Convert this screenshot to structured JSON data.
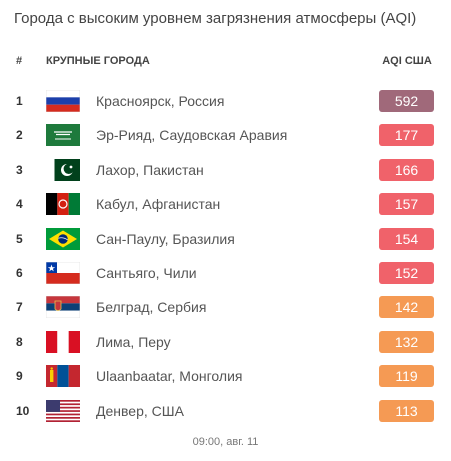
{
  "title": "Города с высоким уровнем загрязнения атмосферы (AQI)",
  "headers": {
    "num": "#",
    "city": "КРУПНЫЕ ГОРОДА",
    "aqi": "AQI США"
  },
  "cities": [
    {
      "rank": "1",
      "name": "Красноярск, Россия",
      "aqi": "592",
      "color": "#a0697a",
      "flag": "russia-flag-icon"
    },
    {
      "rank": "2",
      "name": "Эр-Рияд, Саудовская Аравия",
      "aqi": "177",
      "color": "#f0626a",
      "flag": "saudi-arabia-flag-icon"
    },
    {
      "rank": "3",
      "name": "Лахор, Пакистан",
      "aqi": "166",
      "color": "#f0626a",
      "flag": "pakistan-flag-icon"
    },
    {
      "rank": "4",
      "name": "Кабул, Афганистан",
      "aqi": "157",
      "color": "#f0626a",
      "flag": "afghanistan-flag-icon"
    },
    {
      "rank": "5",
      "name": "Сан-Паулу, Бразилия",
      "aqi": "154",
      "color": "#f0626a",
      "flag": "brazil-flag-icon"
    },
    {
      "rank": "6",
      "name": "Сантьяго, Чили",
      "aqi": "152",
      "color": "#f0626a",
      "flag": "chile-flag-icon"
    },
    {
      "rank": "7",
      "name": "Белград, Сербия",
      "aqi": "142",
      "color": "#f59a54",
      "flag": "serbia-flag-icon"
    },
    {
      "rank": "8",
      "name": "Лима, Перу",
      "aqi": "132",
      "color": "#f59a54",
      "flag": "peru-flag-icon"
    },
    {
      "rank": "9",
      "name": "Ulaanbaatar, Монголия",
      "aqi": "119",
      "color": "#f59a54",
      "flag": "mongolia-flag-icon"
    },
    {
      "rank": "10",
      "name": "Денвер, США",
      "aqi": "113",
      "color": "#f59a54",
      "flag": "usa-flag-icon"
    }
  ],
  "footer": "09:00, авг. 11"
}
